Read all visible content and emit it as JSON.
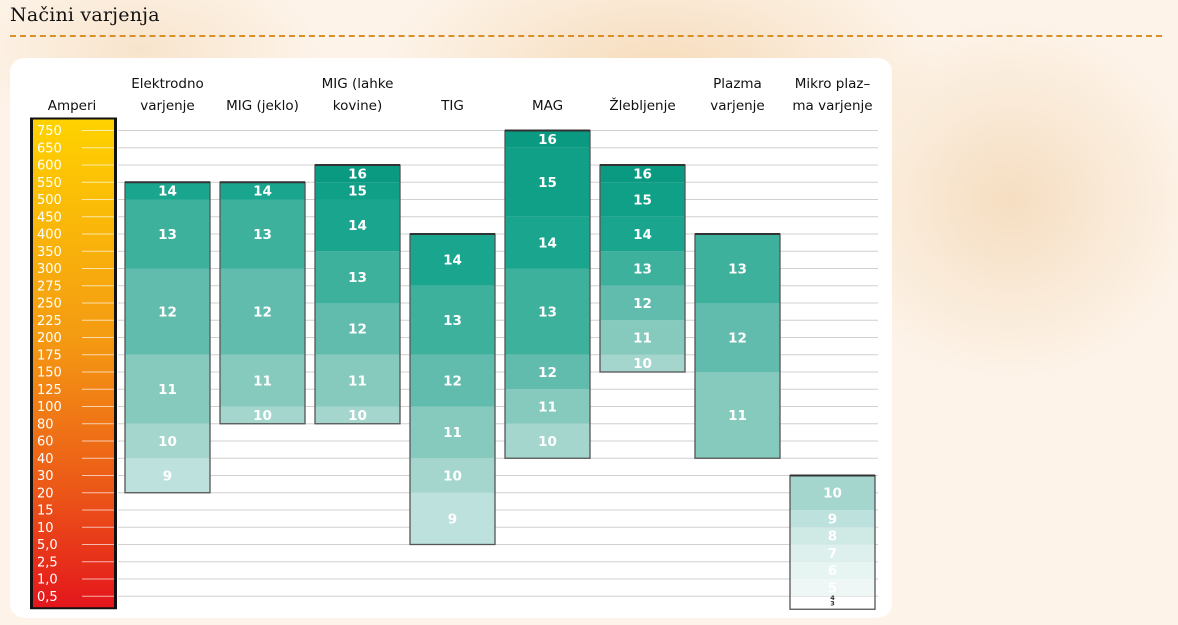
{
  "header": {
    "title": "Načini varjenja"
  },
  "chart_data": {
    "type": "bar",
    "subtype": "range-bands",
    "amp_axis": {
      "label": "Amperi",
      "ticks": [
        "750",
        "650",
        "600",
        "550",
        "500",
        "450",
        "400",
        "350",
        "300",
        "275",
        "250",
        "225",
        "200",
        "175",
        "150",
        "125",
        "100",
        "80",
        "60",
        "40",
        "30",
        "20",
        "15",
        "10",
        "5,0",
        "2,5",
        "1,0",
        "0,5"
      ]
    },
    "processes": [
      {
        "name_lines": [
          "Elektrodno",
          "varjenje"
        ],
        "segments": [
          {
            "label": "14",
            "from": "500",
            "to": "550"
          },
          {
            "label": "13",
            "from": "300",
            "to": "500"
          },
          {
            "label": "12",
            "from": "175",
            "to": "300"
          },
          {
            "label": "11",
            "from": "80",
            "to": "175"
          },
          {
            "label": "10",
            "from": "40",
            "to": "80"
          },
          {
            "label": "9",
            "from": "20",
            "to": "40"
          }
        ]
      },
      {
        "name_lines": [
          "MIG (jeklo)"
        ],
        "segments": [
          {
            "label": "14",
            "from": "500",
            "to": "550"
          },
          {
            "label": "13",
            "from": "300",
            "to": "500"
          },
          {
            "label": "12",
            "from": "175",
            "to": "300"
          },
          {
            "label": "11",
            "from": "100",
            "to": "175"
          },
          {
            "label": "10",
            "from": "80",
            "to": "100"
          }
        ]
      },
      {
        "name_lines": [
          "MIG (lahke",
          "kovine)"
        ],
        "segments": [
          {
            "label": "16",
            "from": "550",
            "to": "600"
          },
          {
            "label": "15",
            "from": "500",
            "to": "550"
          },
          {
            "label": "14",
            "from": "350",
            "to": "500"
          },
          {
            "label": "13",
            "from": "250",
            "to": "350"
          },
          {
            "label": "12",
            "from": "175",
            "to": "250"
          },
          {
            "label": "11",
            "from": "100",
            "to": "175"
          },
          {
            "label": "10",
            "from": "80",
            "to": "100"
          }
        ]
      },
      {
        "name_lines": [
          "TIG"
        ],
        "segments": [
          {
            "label": "14",
            "from": "275",
            "to": "400"
          },
          {
            "label": "13",
            "from": "175",
            "to": "275"
          },
          {
            "label": "12",
            "from": "100",
            "to": "175"
          },
          {
            "label": "11",
            "from": "40",
            "to": "100"
          },
          {
            "label": "10",
            "from": "20",
            "to": "40"
          },
          {
            "label": "9",
            "from": "5,0",
            "to": "20"
          }
        ]
      },
      {
        "name_lines": [
          "MAG"
        ],
        "segments": [
          {
            "label": "16",
            "from": "650",
            "to": "750"
          },
          {
            "label": "15",
            "from": "450",
            "to": "650"
          },
          {
            "label": "14",
            "from": "300",
            "to": "450"
          },
          {
            "label": "13",
            "from": "175",
            "to": "300"
          },
          {
            "label": "12",
            "from": "125",
            "to": "175"
          },
          {
            "label": "11",
            "from": "80",
            "to": "125"
          },
          {
            "label": "10",
            "from": "40",
            "to": "80"
          }
        ]
      },
      {
        "name_lines": [
          "Žlebljenje"
        ],
        "segments": [
          {
            "label": "16",
            "from": "550",
            "to": "600"
          },
          {
            "label": "15",
            "from": "450",
            "to": "550"
          },
          {
            "label": "14",
            "from": "350",
            "to": "450"
          },
          {
            "label": "13",
            "from": "275",
            "to": "350"
          },
          {
            "label": "12",
            "from": "225",
            "to": "275"
          },
          {
            "label": "11",
            "from": "175",
            "to": "225"
          },
          {
            "label": "10",
            "from": "150",
            "to": "175"
          }
        ]
      },
      {
        "name_lines": [
          "Plazma",
          "varjenje"
        ],
        "segments": [
          {
            "label": "13",
            "from": "250",
            "to": "400"
          },
          {
            "label": "12",
            "from": "150",
            "to": "250"
          },
          {
            "label": "11",
            "from": "40",
            "to": "150"
          }
        ]
      },
      {
        "name_lines": [
          "Mikro plaz–",
          "ma varjenje"
        ],
        "segments": [
          {
            "label": "10",
            "from": "15",
            "to": "30"
          },
          {
            "label": "9",
            "from": "10",
            "to": "15"
          },
          {
            "label": "8",
            "from": "5,0",
            "to": "10"
          },
          {
            "label": "7",
            "from": "2,5",
            "to": "5,0"
          },
          {
            "label": "6",
            "from": "1,0",
            "to": "2,5"
          },
          {
            "label": "5",
            "from": "0,5",
            "to": "1,0"
          },
          {
            "label": "4",
            "from": "0,5",
            "to": "0,5"
          },
          {
            "label": "3",
            "from": "0,5",
            "to": "0,5"
          }
        ]
      }
    ],
    "shade_colors": {
      "16": "#0a9a82",
      "15": "#10a088",
      "14": "#1aa68e",
      "13": "#3db19c",
      "12": "#62bcad",
      "11": "#86cabe",
      "10": "#a4d6ce",
      "9": "#bde1dc",
      "8": "#cfe9e5",
      "7": "#ddf0ed",
      "6": "#e6f4f2",
      "5": "#eef7f6",
      "4": "#f3faf9",
      "3": "#f7fcfb"
    },
    "grid": true
  }
}
